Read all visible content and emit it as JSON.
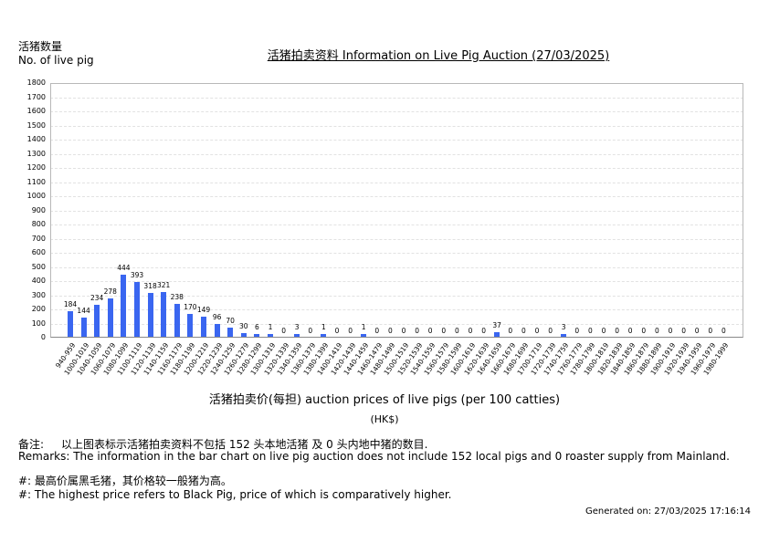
{
  "header": {
    "y_axis_title_cn": "活猪数量",
    "y_axis_title_en": "No. of live pig",
    "title": "活猪拍卖资料 Information on Live Pig Auction (27/03/2025)"
  },
  "chart_data": {
    "type": "bar",
    "title": "活猪拍卖资料 Information on Live Pig Auction (27/03/2025)",
    "xlabel": "活猪拍卖价(每担) auction prices of live pigs (per 100 catties)",
    "xunit": "(HK$)",
    "ylabel": "活猪数量 No. of live pig",
    "ylim": [
      0,
      1800
    ],
    "yticks": [
      0,
      100,
      200,
      300,
      400,
      500,
      600,
      700,
      800,
      900,
      1000,
      1100,
      1200,
      1300,
      1400,
      1500,
      1600,
      1700,
      1800
    ],
    "grid": true,
    "legend": "none",
    "bar_color": "#3a66f0",
    "categories": [
      "940-959",
      "1000-1019",
      "1040-1059",
      "1060-1079",
      "1080-1099",
      "1100-1119",
      "1120-1139",
      "1140-1159",
      "1160-1179",
      "1180-1199",
      "1200-1219",
      "1220-1239",
      "1240-1259",
      "1260-1279",
      "1280-1299",
      "1300-1319",
      "1320-1339",
      "1340-1359",
      "1360-1379",
      "1380-1399",
      "1400-1419",
      "1420-1439",
      "1440-1459",
      "1460-1479",
      "1480-1499",
      "1500-1519",
      "1520-1539",
      "1540-1559",
      "1560-1579",
      "1580-1599",
      "1600-1619",
      "1620-1639",
      "1640-1659",
      "1660-1679",
      "1680-1699",
      "1700-1719",
      "1720-1739",
      "1740-1759",
      "1760-1779",
      "1780-1799",
      "1800-1819",
      "1820-1839",
      "1840-1859",
      "1860-1879",
      "1880-1899",
      "1900-1919",
      "1920-1939",
      "1940-1959",
      "1960-1979",
      "1980-1999"
    ],
    "values": [
      184,
      144,
      234,
      278,
      444,
      393,
      318,
      321,
      238,
      170,
      149,
      96,
      70,
      30,
      6,
      1,
      0,
      3,
      0,
      1,
      0,
      0,
      1,
      0,
      0,
      0,
      0,
      0,
      0,
      0,
      0,
      0,
      37,
      0,
      0,
      0,
      0,
      3,
      0,
      0,
      0,
      0,
      0,
      0,
      0,
      0,
      0,
      0,
      0,
      0
    ]
  },
  "notes": {
    "remark_cn_label": "备注:",
    "remark_cn": "以上图表标示活猪拍卖资料不包括 152 头本地活猪 及 0 头内地中猪的数目.",
    "remark_en": "Remarks: The information in the bar chart on live pig auction does not include 152 local pigs and 0 roaster supply from Mainland.",
    "hash_cn": "#: 最高价属黑毛猪，其价格较一般猪为高。",
    "hash_en": "#: The highest price refers to Black Pig, price of which is comparatively higher."
  },
  "footer": {
    "generated": "Generated on: 27/03/2025 17:16:14"
  }
}
